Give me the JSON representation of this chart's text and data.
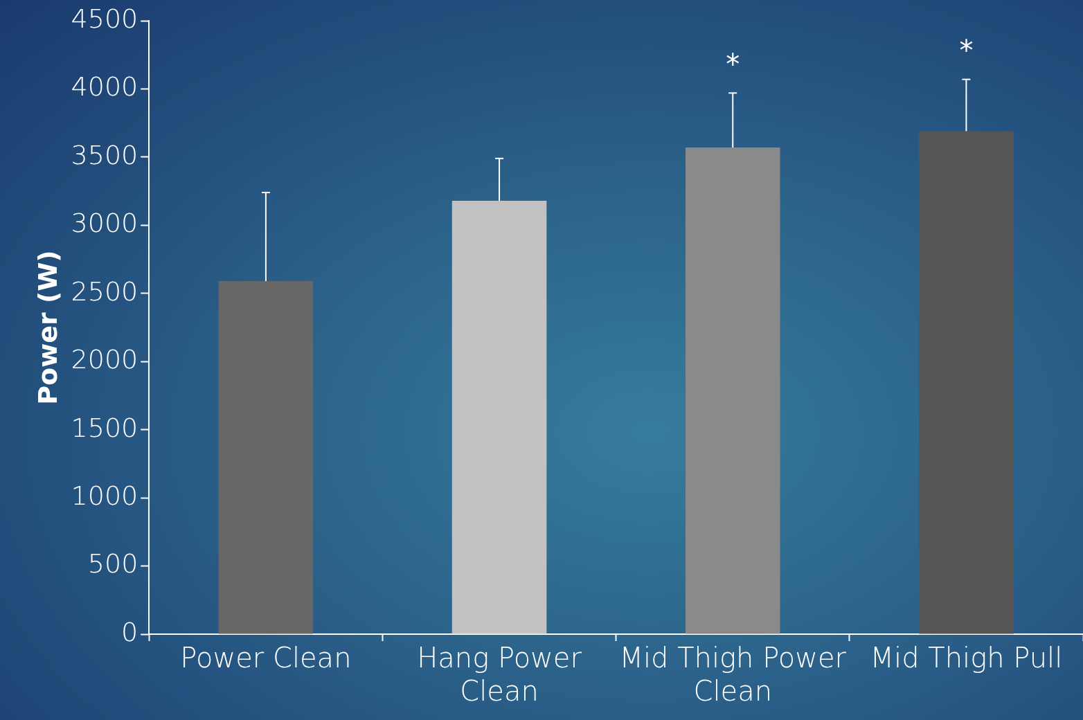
{
  "chart_data": {
    "type": "bar",
    "ylabel": "Power (W)",
    "categories": [
      "Power Clean",
      "Hang Power Clean",
      "Mid Thigh Power Clean",
      "Mid Thigh Pull"
    ],
    "values": [
      2590,
      3180,
      3570,
      3690
    ],
    "colors": [
      "#676767",
      "#c2c2c2",
      "#8a8a8a",
      "#555555"
    ],
    "errors": [
      [
        2590,
        3240
      ],
      [
        3180,
        3490
      ],
      [
        3570,
        3970
      ],
      [
        3690,
        4070
      ]
    ],
    "ylim": [
      0,
      4500
    ],
    "yticks": [
      0,
      500,
      1000,
      1500,
      2000,
      2500,
      3000,
      3500,
      4000,
      4500
    ],
    "grid": false,
    "legend": false,
    "annotations": [
      "*",
      "*"
    ]
  }
}
